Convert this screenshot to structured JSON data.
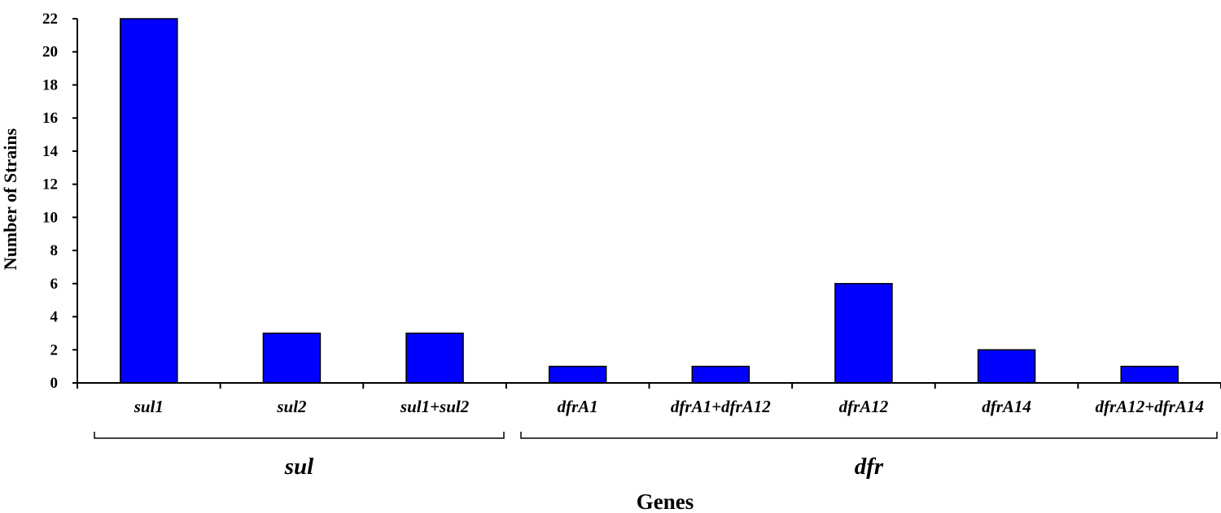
{
  "chart_data": {
    "type": "bar",
    "categories": [
      "sul1",
      "sul2",
      "sul1+sul2",
      "dfrA1",
      "dfrA1+dfrA12",
      "dfrA12",
      "dfrA14",
      "dfrA12+dfrA14"
    ],
    "values": [
      22,
      3,
      3,
      1,
      1,
      6,
      2,
      1
    ],
    "xlabel": "Genes",
    "ylabel": "Number of Strains",
    "ylim": [
      0,
      22
    ],
    "yticks": [
      0,
      2,
      4,
      6,
      8,
      10,
      12,
      14,
      16,
      18,
      20,
      22
    ],
    "groups": [
      {
        "label": "sul",
        "categories": [
          "sul1",
          "sul2",
          "sul1+sul2"
        ]
      },
      {
        "label": "dfr",
        "categories": [
          "dfrA1",
          "dfrA1+dfrA12",
          "dfrA12",
          "dfrA14",
          "dfrA12+dfrA14"
        ]
      }
    ],
    "bar_color": "#0000ff",
    "grid": false,
    "legend": "none"
  }
}
